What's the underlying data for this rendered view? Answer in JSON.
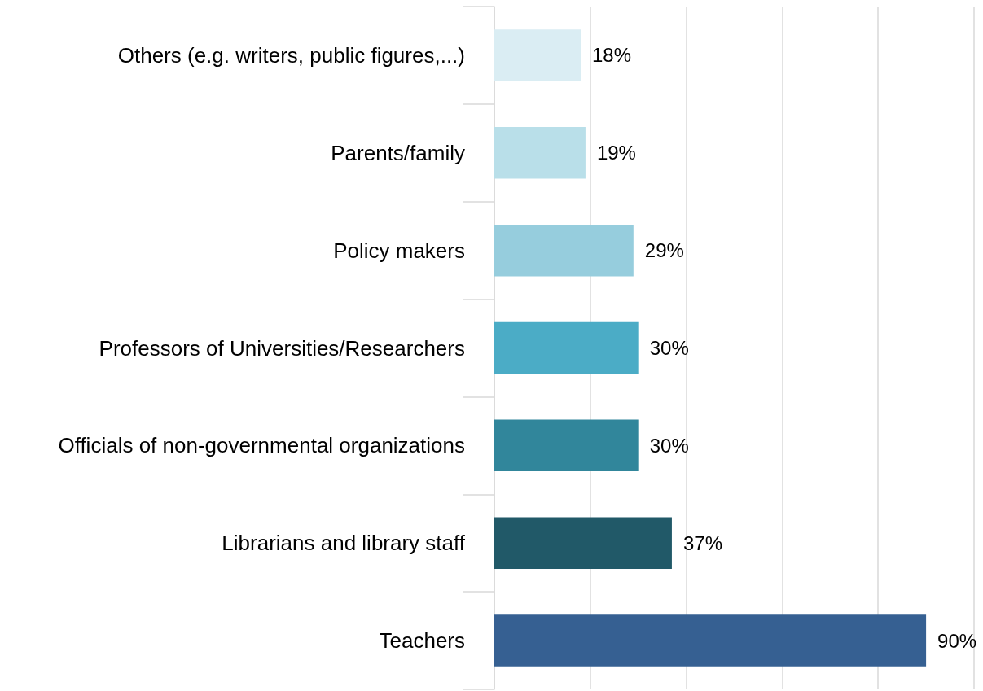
{
  "chart_data": {
    "type": "bar",
    "orientation": "horizontal",
    "categories": [
      "Others (e.g. writers, public figures,...)",
      "Parents/family",
      "Policy makers",
      "Professors of Universities/Researchers",
      "Officials of non-governmental organizations",
      "Librarians and library staff",
      "Teachers"
    ],
    "values": [
      18,
      19,
      29,
      30,
      30,
      37,
      90
    ],
    "value_labels": [
      "18%",
      "19%",
      "29%",
      "30%",
      "30%",
      "37%",
      "90%"
    ],
    "colors": [
      "#daedf3",
      "#b9dfe9",
      "#96cddd",
      "#4bacc6",
      "#31869b",
      "#215968",
      "#366092"
    ],
    "xlim": [
      0,
      100
    ],
    "xticks": [
      0,
      20,
      40,
      60,
      80,
      100
    ],
    "grid": "x",
    "tick_labels": "y"
  }
}
